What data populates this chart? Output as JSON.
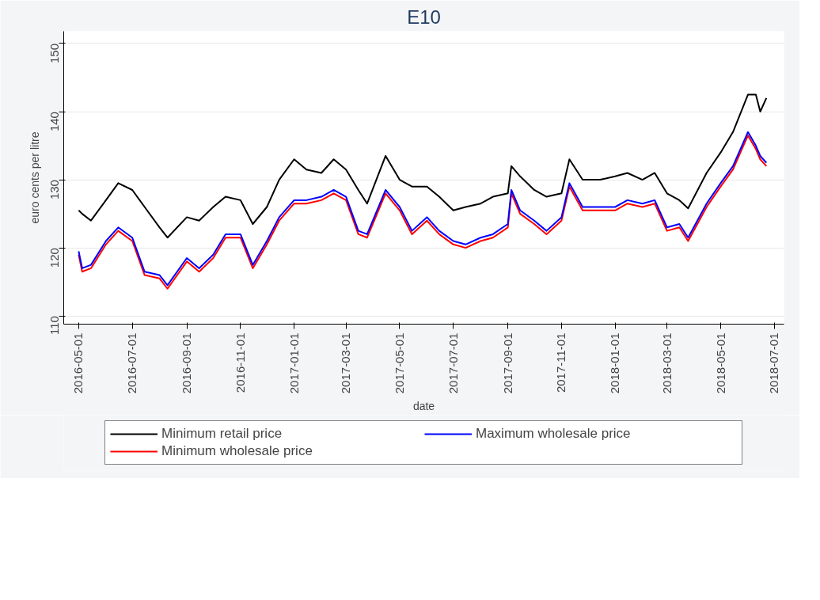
{
  "chart_data": {
    "type": "line",
    "title": "E10",
    "xlabel": "date",
    "ylabel": "euro cents per litre",
    "x": [
      "2016-05-01",
      "2016-05-05",
      "2016-05-15",
      "2016-06-01",
      "2016-06-15",
      "2016-07-01",
      "2016-07-15",
      "2016-08-01",
      "2016-08-10",
      "2016-09-01",
      "2016-09-15",
      "2016-10-01",
      "2016-10-15",
      "2016-11-01",
      "2016-11-15",
      "2016-12-01",
      "2016-12-15",
      "2017-01-01",
      "2017-01-15",
      "2017-02-01",
      "2017-02-15",
      "2017-03-01",
      "2017-03-15",
      "2017-03-25",
      "2017-04-15",
      "2017-05-01",
      "2017-05-15",
      "2017-06-01",
      "2017-06-15",
      "2017-07-01",
      "2017-07-15",
      "2017-08-01",
      "2017-08-15",
      "2017-09-01",
      "2017-09-05",
      "2017-09-15",
      "2017-10-01",
      "2017-10-15",
      "2017-11-01",
      "2017-11-10",
      "2017-11-25",
      "2017-12-15",
      "2018-01-01",
      "2018-01-15",
      "2018-02-01",
      "2018-02-15",
      "2018-03-01",
      "2018-03-15",
      "2018-03-25",
      "2018-04-15",
      "2018-05-01",
      "2018-05-15",
      "2018-06-01",
      "2018-06-10",
      "2018-06-15",
      "2018-06-22"
    ],
    "series": [
      {
        "name": "Minimum retail price",
        "color": "#000000",
        "values": [
          125.5,
          125,
          124,
          127,
          129.5,
          128.5,
          126,
          123,
          121.5,
          124.5,
          124,
          126,
          127.5,
          127,
          123.5,
          126,
          130,
          133,
          131.5,
          131,
          133,
          131.5,
          128.5,
          126.5,
          133.5,
          130,
          129,
          129,
          127.5,
          125.5,
          126,
          126.5,
          127.5,
          128,
          132,
          130.5,
          128.5,
          127.5,
          128,
          133,
          130,
          130,
          130.5,
          131,
          130,
          131,
          128,
          127,
          125.8,
          131,
          134,
          137,
          142.5,
          142.5,
          140,
          142
        ]
      },
      {
        "name": "Minimum wholesale price",
        "color": "#ff0000",
        "values": [
          119,
          116.5,
          117,
          120.5,
          122.5,
          121,
          116,
          115.5,
          114,
          118,
          116.5,
          118.5,
          121.5,
          121.5,
          117,
          120.5,
          124,
          126.5,
          126.5,
          127,
          128,
          127,
          122,
          121.5,
          128,
          125.5,
          122,
          124,
          122,
          120.5,
          120,
          121,
          121.5,
          123,
          128,
          125,
          123.5,
          122,
          124,
          129,
          125.5,
          125.5,
          125.5,
          126.5,
          126,
          126.5,
          122.5,
          123,
          121,
          126,
          129,
          131.5,
          136.5,
          134.5,
          133,
          132
        ]
      },
      {
        "name": "Maximum wholesale price",
        "color": "#0000ff",
        "values": [
          119.5,
          117,
          117.5,
          121,
          123,
          121.5,
          116.5,
          116,
          114.5,
          118.5,
          117,
          119,
          122,
          122,
          117.5,
          121,
          124.5,
          127,
          127,
          127.5,
          128.5,
          127.5,
          122.5,
          122,
          128.5,
          126,
          122.5,
          124.5,
          122.5,
          121,
          120.5,
          121.5,
          122,
          123.5,
          128.5,
          125.5,
          124,
          122.5,
          124.5,
          129.5,
          126,
          126,
          126,
          127,
          126.5,
          127,
          123,
          123.5,
          121.5,
          126.5,
          129.5,
          132,
          137,
          135,
          133.5,
          132.5
        ]
      }
    ],
    "xlim": [
      "2016-04-14",
      "2018-07-12"
    ],
    "xticks": [
      "2016-05-01",
      "2016-07-01",
      "2016-09-01",
      "2016-11-01",
      "2017-01-01",
      "2017-03-01",
      "2017-05-01",
      "2017-07-01",
      "2017-09-01",
      "2017-11-01",
      "2018-01-01",
      "2018-03-01",
      "2018-05-01",
      "2018-07-01"
    ],
    "ylim": [
      108.8,
      151.8
    ],
    "yticks": [
      110,
      120,
      130,
      140,
      150
    ],
    "grid": "y",
    "legend": "bottom",
    "line_style": "solid"
  }
}
